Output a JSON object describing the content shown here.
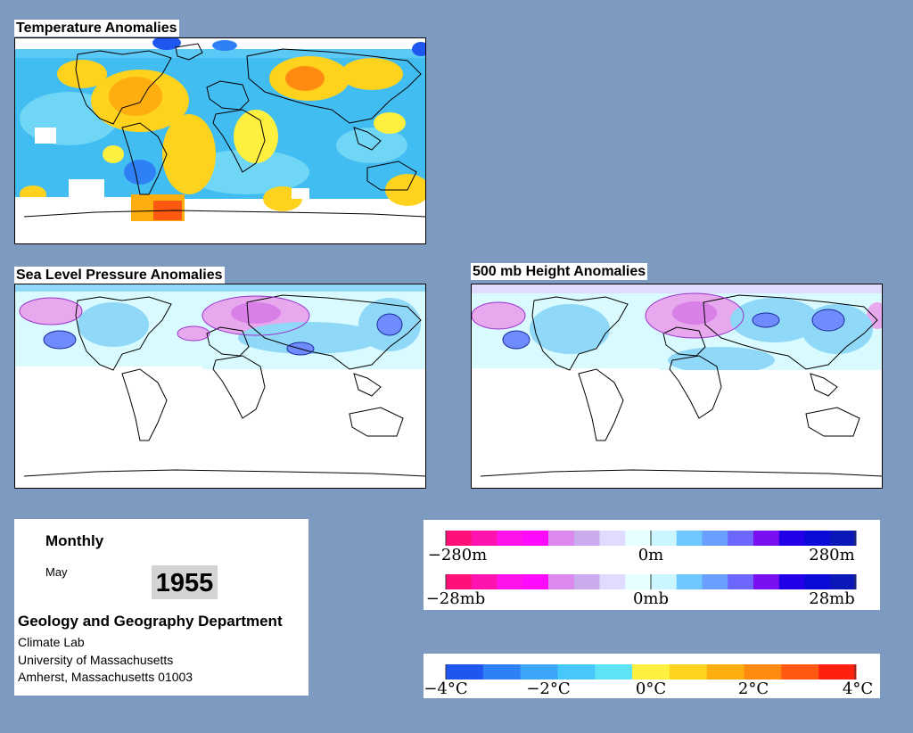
{
  "maps": {
    "temperature": {
      "title": "Temperature Anomalies"
    },
    "slp": {
      "title": "Sea Level Pressure Anomalies"
    },
    "height500": {
      "title": "500 mb Height Anomalies"
    }
  },
  "info": {
    "period": "Monthly",
    "month": "May",
    "year": "1955",
    "department": "Geology and Geography Department",
    "lab": "Climate Lab",
    "university": "University of Massachusetts",
    "address": "Amherst, Massachusetts 01003"
  },
  "legends": {
    "height": {
      "labels": [
        "−280m",
        "0m",
        "280m"
      ],
      "colors": [
        "#ff0f78",
        "#ff13b0",
        "#fe14eb",
        "#fe0bfd",
        "#dd88ee",
        "#ccaaee",
        "#e0dcff",
        "#e6ffff",
        "#c9f6ff",
        "#6ec8ff",
        "#69a0ff",
        "#6d66ff",
        "#7a0ff0",
        "#2200e8",
        "#0c0ad6",
        "#0a18b8"
      ]
    },
    "pressure": {
      "labels": [
        "−28mb",
        "0mb",
        "28mb"
      ],
      "colors": [
        "#ff0f78",
        "#ff13b0",
        "#fe14eb",
        "#fe0bfd",
        "#dd88ee",
        "#ccaaee",
        "#e0dcff",
        "#e6ffff",
        "#c9f6ff",
        "#6ec8ff",
        "#69a0ff",
        "#6d66ff",
        "#7a0ff0",
        "#2200e8",
        "#0c0ad6",
        "#0a18b8"
      ]
    },
    "temperature": {
      "labels": [
        "−4°C",
        "−2°C",
        "0°C",
        "2°C",
        "4°C"
      ],
      "colors": [
        "#1e56f0",
        "#2f80f5",
        "#3ca7fa",
        "#47c8fb",
        "#5ee2f6",
        "#fff040",
        "#ffd21e",
        "#ffae10",
        "#ff8a10",
        "#ff5810",
        "#ff2010"
      ]
    }
  },
  "colors": {
    "background": "#7d9ac0",
    "ocean_light": "#d9fbff",
    "cool": "#3cb8f5",
    "warm": "#ffd21e",
    "hot": "#ff8a10",
    "high_pink": "#e8a8ee",
    "low_blue": "#6f8cff"
  }
}
